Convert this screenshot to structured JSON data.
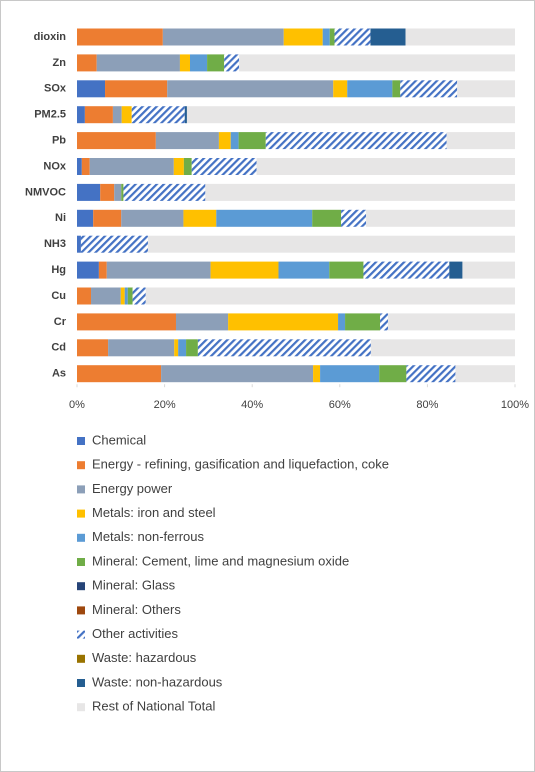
{
  "chart_data": {
    "type": "stacked_hbar",
    "categories": [
      "dioxin",
      "Zn",
      "SOx",
      "PM2.5",
      "Pb",
      "NOx",
      "NMVOC",
      "Ni",
      "NH3",
      "Hg",
      "Cu",
      "Cr",
      "Cd",
      "As"
    ],
    "series": [
      {
        "name": "Chemical",
        "color": "#4472c4",
        "values": [
          0,
          0,
          6.4,
          1.8,
          0,
          1.1,
          5.3,
          3.7,
          0.9,
          5,
          0,
          0,
          0,
          0
        ]
      },
      {
        "name": "Energy - refining, gasification and liquefaction, coke",
        "color": "#ed7d31",
        "values": [
          19.6,
          4.5,
          14.2,
          6.4,
          18,
          1.8,
          3.2,
          6.4,
          0,
          1.8,
          3.2,
          22.6,
          7.1,
          19.2
        ]
      },
      {
        "name": "Energy power",
        "color": "#8c9fb8",
        "values": [
          27.6,
          19,
          37.9,
          2,
          14.4,
          19.2,
          1.6,
          14.2,
          0,
          23.7,
          6.8,
          11.9,
          15.1,
          34.7
        ]
      },
      {
        "name": "Metals: iron and steel",
        "color": "#ffc000",
        "values": [
          8.9,
          2.3,
          3.2,
          2.3,
          2.7,
          2.3,
          0,
          7.5,
          0,
          15.5,
          0.9,
          25.1,
          0.9,
          1.6
        ]
      },
      {
        "name": "Metals: non-ferrous",
        "color": "#5b9bd5",
        "values": [
          1.6,
          3.9,
          10.3,
          0,
          1.8,
          0,
          0,
          21.9,
          0,
          11.6,
          0.7,
          1.6,
          1.8,
          13.5
        ]
      },
      {
        "name": "Mineral: Cement, lime and magnesium oxide",
        "color": "#70ad47",
        "values": [
          1.1,
          3.9,
          1.8,
          0,
          6.2,
          1.8,
          0.5,
          6.6,
          0,
          7.8,
          1.1,
          8,
          2.7,
          6.2
        ]
      },
      {
        "name": "Mineral: Glass",
        "color": "#264478",
        "values": [
          0,
          0,
          0,
          0,
          0,
          0,
          0,
          0,
          0,
          0,
          0,
          0,
          0,
          0
        ]
      },
      {
        "name": "Mineral: Others",
        "color": "#9e480e",
        "values": [
          0,
          0,
          0,
          0,
          0,
          0,
          0,
          0,
          0,
          0,
          0,
          0,
          0,
          0
        ]
      },
      {
        "name": "Other activities",
        "color": "#4472c4",
        "pattern": "hatch",
        "values": [
          8.2,
          3.4,
          13,
          12.1,
          41.3,
          14.8,
          18.7,
          5.7,
          15.3,
          19.6,
          3,
          1.8,
          39.5,
          11.2
        ]
      },
      {
        "name": "Waste: hazardous",
        "color": "#997300",
        "values": [
          0,
          0,
          0,
          0,
          0,
          0,
          0,
          0,
          0,
          0,
          0,
          0,
          0,
          0
        ]
      },
      {
        "name": "Waste: non-hazardous",
        "color": "#255e91",
        "values": [
          8,
          0,
          0,
          0.5,
          0,
          0,
          0,
          0,
          0,
          3,
          0,
          0,
          0,
          0
        ]
      },
      {
        "name": "Rest of National Total",
        "color": "#e7e6e6",
        "values": [
          25,
          63,
          13.2,
          74.9,
          15.6,
          59,
          70.7,
          34,
          83.8,
          12,
          84.3,
          29,
          32.9,
          13.6
        ]
      }
    ],
    "xlim": [
      0,
      100
    ],
    "xticks": [
      {
        "value": 0,
        "label": "0%"
      },
      {
        "value": 20,
        "label": "20%"
      },
      {
        "value": 40,
        "label": "40%"
      },
      {
        "value": 60,
        "label": "60%"
      },
      {
        "value": 80,
        "label": "80%"
      },
      {
        "value": 100,
        "label": "100%"
      }
    ],
    "legend": "bottom"
  }
}
